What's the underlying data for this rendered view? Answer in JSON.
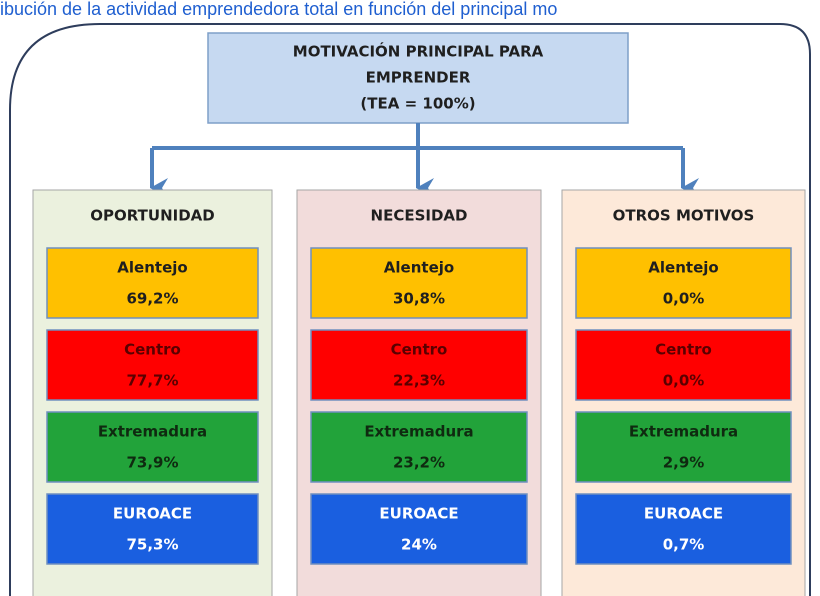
{
  "title": "ibución de la actividad emprendedora total en función del principal mo",
  "top": {
    "lines": [
      "MOTIVACIÓN PRINCIPAL PARA",
      "EMPRENDER",
      "(TEA = 100%)"
    ]
  },
  "columns": [
    {
      "header": "OPORTUNIDAD",
      "regions": [
        {
          "name": "Alentejo",
          "value": "69,2%"
        },
        {
          "name": "Centro",
          "value": "77,7%"
        },
        {
          "name": "Extremadura",
          "value": "73,9%"
        },
        {
          "name": "EUROACE",
          "value": "75,3%"
        }
      ]
    },
    {
      "header": "NECESIDAD",
      "regions": [
        {
          "name": "Alentejo",
          "value": "30,8%"
        },
        {
          "name": "Centro",
          "value": "22,3%"
        },
        {
          "name": "Extremadura",
          "value": "23,2%"
        },
        {
          "name": "EUROACE",
          "value": "24%"
        }
      ]
    },
    {
      "header": "OTROS MOTIVOS",
      "regions": [
        {
          "name": "Alentejo",
          "value": "0,0%"
        },
        {
          "name": "Centro",
          "value": "0,0%"
        },
        {
          "name": "Extremadura",
          "value": "2,9%"
        },
        {
          "name": "EUROACE",
          "value": "0,7%"
        }
      ]
    }
  ]
}
